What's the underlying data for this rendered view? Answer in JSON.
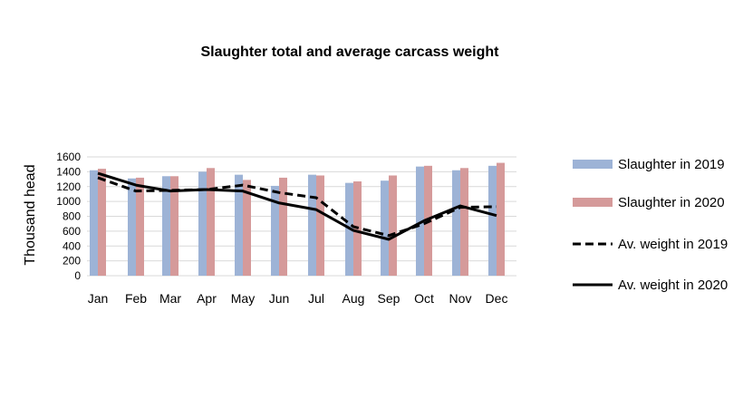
{
  "chart_data": {
    "type": "bar",
    "title": "Slaughter total and average carcass weight",
    "xlabel": "",
    "ylabel": "Thousand head",
    "ylim": [
      0,
      1600
    ],
    "yticks": [
      0,
      200,
      400,
      600,
      800,
      1000,
      1200,
      1400,
      1600
    ],
    "grid": true,
    "legend_placement": "right",
    "categories": [
      "Jan",
      "Feb",
      "Mar",
      "Apr",
      "May",
      "Jun",
      "Jul",
      "Aug",
      "Sep",
      "Oct",
      "Nov",
      "Dec"
    ],
    "series": [
      {
        "name": "Slaughter in 2019",
        "kind": "bar",
        "color": "#9db3d6",
        "values": [
          1420,
          1310,
          1340,
          1400,
          1360,
          1210,
          1360,
          1250,
          1280,
          1470,
          1420,
          1480
        ]
      },
      {
        "name": "Slaughter in 2020",
        "kind": "bar",
        "color": "#d59a9a",
        "values": [
          1440,
          1320,
          1340,
          1450,
          1290,
          1320,
          1350,
          1270,
          1350,
          1480,
          1450,
          1520
        ]
      },
      {
        "name": "Av. weight in 2019",
        "kind": "line",
        "style": "dashed",
        "color": "#000000",
        "values": [
          1320,
          1140,
          1150,
          1160,
          1220,
          1120,
          1050,
          660,
          540,
          700,
          920,
          930
        ]
      },
      {
        "name": "Av. weight in 2020",
        "kind": "line",
        "style": "solid",
        "color": "#000000",
        "values": [
          1380,
          1220,
          1140,
          1160,
          1140,
          980,
          890,
          610,
          490,
          740,
          940,
          810
        ]
      }
    ]
  }
}
